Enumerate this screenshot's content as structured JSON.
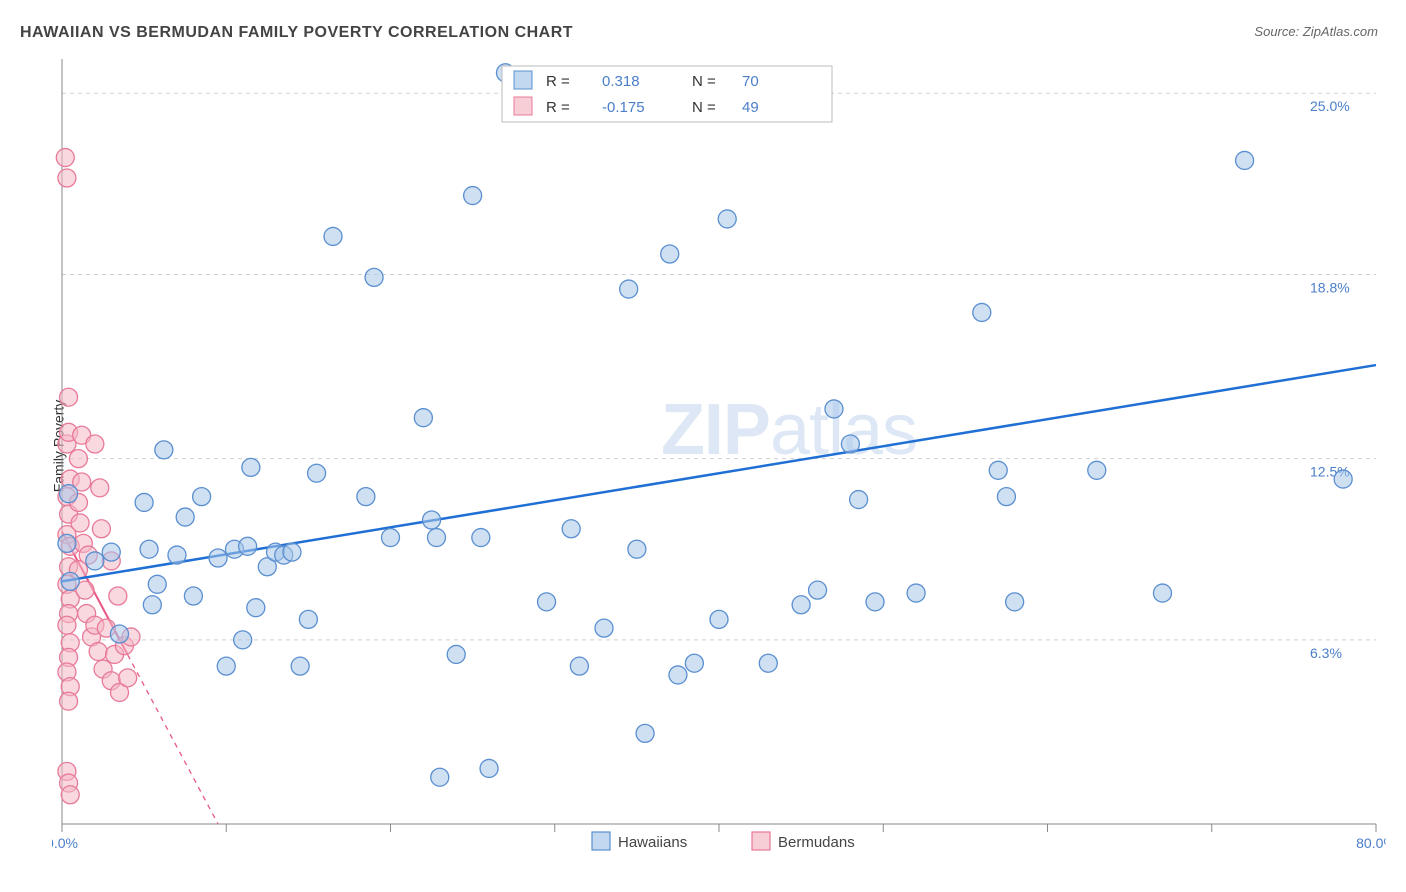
{
  "title": "HAWAIIAN VS BERMUDAN FAMILY POVERTY CORRELATION CHART",
  "source_label": "Source:",
  "source_value": "ZipAtlas.com",
  "ylabel": "Family Poverty",
  "watermark_bold": "ZIP",
  "watermark_light": "atlas",
  "chart": {
    "type": "scatter",
    "xlim": [
      0,
      80
    ],
    "ylim": [
      0,
      26
    ],
    "xticks": [
      0,
      10,
      20,
      30,
      40,
      50,
      60,
      70,
      80
    ],
    "xtick_labels": {
      "0": "0.0%",
      "80": "80.0%"
    },
    "yticks": [
      6.3,
      12.5,
      18.8,
      25.0
    ],
    "ytick_labels": [
      "6.3%",
      "12.5%",
      "18.8%",
      "25.0%"
    ],
    "grid_color": "#d0d0d0",
    "background_color": "#ffffff",
    "series": [
      {
        "name": "Hawaiians",
        "color_fill": "#a8c7ea",
        "color_stroke": "#5a8fd0",
        "fill_opacity": 0.55,
        "marker_radius": 9,
        "R": "0.318",
        "N": "70",
        "trend": {
          "x1": 0,
          "y1": 8.3,
          "x2": 80,
          "y2": 15.7,
          "color": "#1f6fd4",
          "width": 2.5,
          "dash": "none"
        },
        "points": [
          [
            0.3,
            9.6
          ],
          [
            0.4,
            11.3
          ],
          [
            0.5,
            8.3
          ],
          [
            2,
            9
          ],
          [
            3,
            9.3
          ],
          [
            3.5,
            6.5
          ],
          [
            5,
            11
          ],
          [
            5.3,
            9.4
          ],
          [
            5.5,
            7.5
          ],
          [
            5.8,
            8.2
          ],
          [
            6.2,
            12.8
          ],
          [
            7,
            9.2
          ],
          [
            7.5,
            10.5
          ],
          [
            8,
            7.8
          ],
          [
            8.5,
            11.2
          ],
          [
            9.5,
            9.1
          ],
          [
            10,
            5.4
          ],
          [
            10.5,
            9.4
          ],
          [
            11,
            6.3
          ],
          [
            11.3,
            9.5
          ],
          [
            11.8,
            7.4
          ],
          [
            11.5,
            12.2
          ],
          [
            12.5,
            8.8
          ],
          [
            13,
            9.3
          ],
          [
            13.5,
            9.2
          ],
          [
            14,
            9.3
          ],
          [
            14.5,
            5.4
          ],
          [
            15,
            7.0
          ],
          [
            15.5,
            12.0
          ],
          [
            16.5,
            20.1
          ],
          [
            18.5,
            11.2
          ],
          [
            19,
            18.7
          ],
          [
            20,
            9.8
          ],
          [
            22,
            13.9
          ],
          [
            22.5,
            10.4
          ],
          [
            22.8,
            9.8
          ],
          [
            23,
            1.6
          ],
          [
            24,
            5.8
          ],
          [
            25,
            21.5
          ],
          [
            25.5,
            9.8
          ],
          [
            26,
            1.9
          ],
          [
            27,
            25.7
          ],
          [
            29.5,
            7.6
          ],
          [
            31,
            10.1
          ],
          [
            31.5,
            5.4
          ],
          [
            33,
            6.7
          ],
          [
            34.5,
            18.3
          ],
          [
            35,
            9.4
          ],
          [
            35.5,
            3.1
          ],
          [
            37,
            19.5
          ],
          [
            37.5,
            5.1
          ],
          [
            38.5,
            5.5
          ],
          [
            40,
            7.0
          ],
          [
            40.5,
            20.7
          ],
          [
            43,
            5.5
          ],
          [
            45,
            7.5
          ],
          [
            46,
            8.0
          ],
          [
            47,
            14.2
          ],
          [
            48,
            13.0
          ],
          [
            48.5,
            11.1
          ],
          [
            49.5,
            7.6
          ],
          [
            52,
            7.9
          ],
          [
            56,
            17.5
          ],
          [
            57,
            12.1
          ],
          [
            57.5,
            11.2
          ],
          [
            58,
            7.6
          ],
          [
            63,
            12.1
          ],
          [
            67,
            7.9
          ],
          [
            72,
            22.7
          ],
          [
            78,
            11.8
          ]
        ]
      },
      {
        "name": "Bermudans",
        "color_fill": "#f4b8c5",
        "color_stroke": "#e87a99",
        "fill_opacity": 0.55,
        "marker_radius": 9,
        "R": "-0.175",
        "N": "49",
        "trend": {
          "x1": 0,
          "y1": 10.0,
          "x2": 9.5,
          "y2": 0,
          "color": "#e85a85",
          "width": 1.3,
          "dash": "5 5",
          "solid_until_x": 4
        },
        "points": [
          [
            0.2,
            22.8
          ],
          [
            0.3,
            22.1
          ],
          [
            0.4,
            14.6
          ],
          [
            0.3,
            13.0
          ],
          [
            0.4,
            13.4
          ],
          [
            0.5,
            11.8
          ],
          [
            0.3,
            11.2
          ],
          [
            0.4,
            10.6
          ],
          [
            0.3,
            9.9
          ],
          [
            0.5,
            9.5
          ],
          [
            0.4,
            8.8
          ],
          [
            0.3,
            8.2
          ],
          [
            0.5,
            7.7
          ],
          [
            0.4,
            7.2
          ],
          [
            0.3,
            6.8
          ],
          [
            0.5,
            6.2
          ],
          [
            0.4,
            5.7
          ],
          [
            0.3,
            5.2
          ],
          [
            0.5,
            4.7
          ],
          [
            0.4,
            4.2
          ],
          [
            0.3,
            1.8
          ],
          [
            0.4,
            1.4
          ],
          [
            0.5,
            1.0
          ],
          [
            1.0,
            12.5
          ],
          [
            1.0,
            11.0
          ],
          [
            1.2,
            13.3
          ],
          [
            1.1,
            10.3
          ],
          [
            1.3,
            9.6
          ],
          [
            1.0,
            8.7
          ],
          [
            1.4,
            8.0
          ],
          [
            1.2,
            11.7
          ],
          [
            1.5,
            7.2
          ],
          [
            1.8,
            6.4
          ],
          [
            1.6,
            9.2
          ],
          [
            2.0,
            6.8
          ],
          [
            2.2,
            5.9
          ],
          [
            2.0,
            13.0
          ],
          [
            2.3,
            11.5
          ],
          [
            2.5,
            5.3
          ],
          [
            2.7,
            6.7
          ],
          [
            2.4,
            10.1
          ],
          [
            3.0,
            4.9
          ],
          [
            3.2,
            5.8
          ],
          [
            3.0,
            9.0
          ],
          [
            3.5,
            4.5
          ],
          [
            3.8,
            6.1
          ],
          [
            3.4,
            7.8
          ],
          [
            4.0,
            5.0
          ],
          [
            4.2,
            6.4
          ]
        ]
      }
    ],
    "legend_top": {
      "R_label": "R =",
      "N_label": "N ="
    },
    "bottom_legend": [
      "Hawaiians",
      "Bermudans"
    ]
  }
}
